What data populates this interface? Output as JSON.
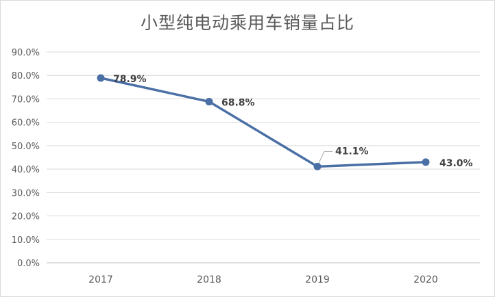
{
  "chart_data": {
    "type": "line",
    "title": "小型纯电动乘用车销量占比",
    "categories": [
      "2017",
      "2018",
      "2019",
      "2020"
    ],
    "series": [
      {
        "values": [
          78.9,
          68.8,
          41.1,
          43.0
        ]
      }
    ],
    "data_labels": [
      "78.9%",
      "68.8%",
      "41.1%",
      "43.0%"
    ],
    "y_ticks": [
      "0.0%",
      "10.0%",
      "20.0%",
      "30.0%",
      "40.0%",
      "50.0%",
      "60.0%",
      "70.0%",
      "80.0%",
      "90.0%"
    ],
    "ylim": [
      0,
      90
    ],
    "grid": true,
    "legend": "none",
    "colors": {
      "line": "#4a6fa5",
      "grid": "#d9d9d9",
      "text": "#595959"
    }
  }
}
